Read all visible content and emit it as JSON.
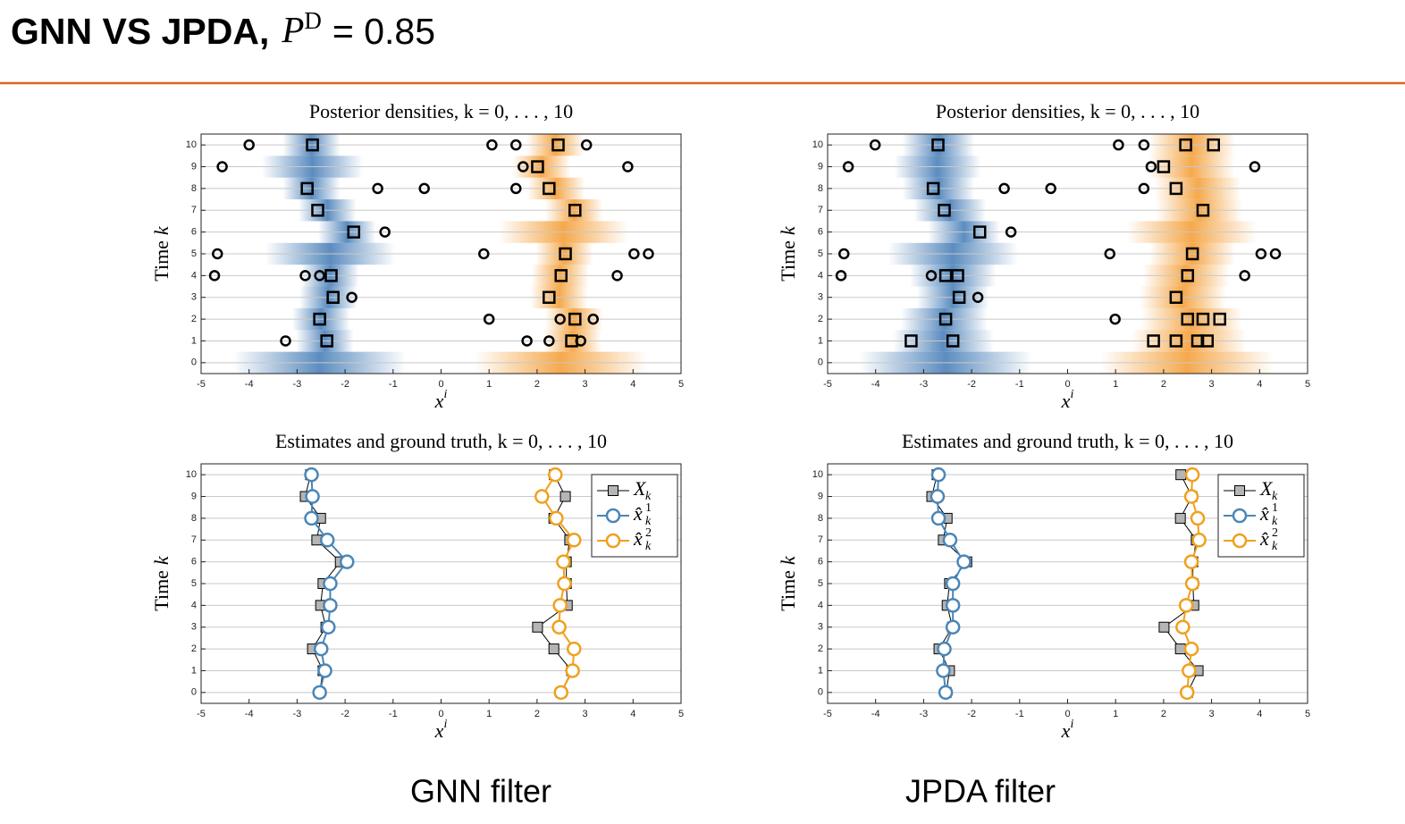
{
  "title": {
    "text": "GNN VS JPDA,",
    "symbol": "P",
    "superscript": "D",
    "equation": "= 0.85"
  },
  "captions": [
    "GNN filter",
    "JPDA filter"
  ],
  "chart_data": [
    {
      "type": "scatter",
      "title": "Posterior densities, k = 0, . . . , 10",
      "xlabel": "x",
      "xlabel_sup": "i",
      "ylabel": "Time",
      "ylabel_var": "k",
      "xlim": [
        -5,
        5
      ],
      "ylim": [
        -0.5,
        10.5
      ],
      "xticks": [
        -5,
        -4,
        -3,
        -2,
        -1,
        0,
        1,
        2,
        3,
        4,
        5
      ],
      "yticks": [
        0,
        1,
        2,
        3,
        4,
        5,
        6,
        7,
        8,
        9,
        10
      ],
      "grid": true,
      "series": [
        {
          "type": "density",
          "color": "#3f78b4",
          "y": [
            0,
            1,
            2,
            3,
            4,
            5,
            6,
            7,
            8,
            9,
            10
          ],
          "x": [
            -2.53,
            -2.42,
            -2.5,
            -2.35,
            -2.31,
            -2.31,
            -1.96,
            -2.37,
            -2.7,
            -2.68,
            -2.7
          ],
          "spread": [
            0.6,
            0.2,
            0.2,
            0.2,
            0.2,
            0.45,
            0.2,
            0.2,
            0.2,
            0.35,
            0.2
          ]
        },
        {
          "type": "density",
          "color": "#f39a2e",
          "y": [
            0,
            1,
            2,
            3,
            4,
            5,
            6,
            7,
            8,
            9,
            10
          ],
          "x": [
            2.5,
            2.74,
            2.77,
            2.46,
            2.48,
            2.57,
            2.55,
            2.77,
            2.4,
            2.1,
            2.38
          ],
          "spread": [
            0.6,
            0.2,
            0.2,
            0.2,
            0.2,
            0.2,
            0.45,
            0.2,
            0.2,
            0.2,
            0.2
          ]
        },
        {
          "type": "points",
          "marker": "circle",
          "color": "#000000",
          "x": [
            -4.0,
            1.06,
            1.56,
            3.03,
            -4.56,
            1.71,
            3.89,
            -1.32,
            -0.35,
            1.56,
            -1.17,
            -4.66,
            0.89,
            4.02,
            4.32,
            -4.72,
            -2.83,
            -2.53,
            3.67,
            -1.86,
            1.0,
            2.48,
            3.17,
            -3.24,
            1.79,
            2.25,
            2.91
          ],
          "y": [
            10,
            10,
            10,
            10,
            9,
            9,
            9,
            8,
            8,
            8,
            6,
            5,
            5,
            5,
            5,
            4,
            4,
            4,
            4,
            3,
            2,
            2,
            2,
            1,
            1,
            1,
            1
          ]
        },
        {
          "type": "points",
          "marker": "square",
          "color": "#000000",
          "x": [
            -2.68,
            2.44,
            2.01,
            -2.79,
            2.25,
            -2.57,
            2.79,
            -1.82,
            2.59,
            -2.29,
            2.5,
            -2.25,
            2.25,
            -2.53,
            2.79,
            -2.38,
            2.72
          ],
          "y": [
            10,
            10,
            9,
            8,
            8,
            7,
            7,
            6,
            5,
            4,
            4,
            3,
            3,
            2,
            2,
            1,
            1
          ]
        }
      ]
    },
    {
      "type": "scatter",
      "title": "Posterior densities, k = 0, . . . , 10",
      "xlabel": "x",
      "xlabel_sup": "i",
      "ylabel": "Time",
      "ylabel_var": "k",
      "xlim": [
        -5,
        5
      ],
      "ylim": [
        -0.5,
        10.5
      ],
      "xticks": [
        -5,
        -4,
        -3,
        -2,
        -1,
        0,
        1,
        2,
        3,
        4,
        5
      ],
      "yticks": [
        0,
        1,
        2,
        3,
        4,
        5,
        6,
        7,
        8,
        9,
        10
      ],
      "grid": true,
      "series": [
        {
          "type": "density",
          "color": "#3f78b4",
          "y": [
            0,
            1,
            2,
            3,
            4,
            5,
            6,
            7,
            8,
            9,
            10
          ],
          "x": [
            -2.54,
            -2.59,
            -2.57,
            -2.39,
            -2.39,
            -2.39,
            -2.16,
            -2.45,
            -2.69,
            -2.71,
            -2.69
          ],
          "spread": [
            0.6,
            0.35,
            0.3,
            0.25,
            0.3,
            0.45,
            0.25,
            0.25,
            0.25,
            0.3,
            0.25
          ]
        },
        {
          "type": "density",
          "color": "#f39a2e",
          "y": [
            0,
            1,
            2,
            3,
            4,
            5,
            6,
            7,
            8,
            9,
            10
          ],
          "x": [
            2.49,
            2.53,
            2.58,
            2.4,
            2.47,
            2.6,
            2.58,
            2.74,
            2.71,
            2.58,
            2.6
          ],
          "spread": [
            0.6,
            0.4,
            0.35,
            0.3,
            0.3,
            0.3,
            0.45,
            0.3,
            0.3,
            0.3,
            0.3
          ]
        },
        {
          "type": "points",
          "marker": "circle",
          "color": "#000000",
          "x": [
            -4.01,
            1.06,
            1.59,
            -4.57,
            1.74,
            3.9,
            -1.32,
            -0.35,
            1.59,
            -1.18,
            -4.66,
            0.88,
            4.03,
            4.33,
            -4.72,
            -2.84,
            3.69,
            -1.87,
            0.99
          ],
          "y": [
            10,
            10,
            10,
            9,
            9,
            9,
            8,
            8,
            8,
            6,
            5,
            5,
            5,
            5,
            4,
            4,
            4,
            3,
            2
          ]
        },
        {
          "type": "points",
          "marker": "square",
          "color": "#000000",
          "x": [
            -2.7,
            2.46,
            3.04,
            2.0,
            -2.8,
            2.26,
            -2.57,
            2.82,
            -1.83,
            2.6,
            -2.54,
            -2.29,
            2.5,
            -2.26,
            2.26,
            -2.54,
            2.5,
            2.82,
            3.17,
            -3.26,
            -2.39,
            1.79,
            2.26,
            2.71,
            2.91
          ],
          "y": [
            10,
            10,
            10,
            9,
            8,
            8,
            7,
            7,
            6,
            5,
            4,
            4,
            4,
            3,
            3,
            2,
            2,
            2,
            2,
            1,
            1,
            1,
            1,
            1,
            1
          ]
        }
      ]
    },
    {
      "type": "line",
      "title": "Estimates and ground truth, k = 0, . . . , 10",
      "xlabel": "x",
      "xlabel_sup": "i",
      "ylabel": "Time",
      "ylabel_var": "k",
      "xlim": [
        -5,
        5
      ],
      "ylim": [
        -0.5,
        10.5
      ],
      "xticks": [
        -5,
        -4,
        -3,
        -2,
        -1,
        0,
        1,
        2,
        3,
        4,
        5
      ],
      "yticks": [
        0,
        1,
        2,
        3,
        4,
        5,
        6,
        7,
        8,
        9,
        10
      ],
      "grid": true,
      "legend": "upper-right",
      "series": [
        {
          "name": "X",
          "subscript": "k",
          "marker": "square",
          "color": "#000000",
          "marker_fill": "#b5b5b5",
          "y": [
            0,
            1,
            2,
            3,
            4,
            5,
            6,
            7,
            8,
            9,
            10
          ],
          "x": [
            -2.53,
            -2.46,
            -2.68,
            -2.4,
            -2.51,
            -2.46,
            -2.1,
            -2.59,
            -2.51,
            -2.83,
            -2.72
          ]
        },
        {
          "marker": "square",
          "color": "#000000",
          "marker_fill": "#b5b5b5",
          "y": [
            0,
            1,
            2,
            3,
            4,
            5,
            6,
            7,
            8,
            9,
            10
          ],
          "x": [
            2.5,
            2.72,
            2.35,
            2.01,
            2.63,
            2.61,
            2.61,
            2.68,
            2.35,
            2.59,
            2.36
          ]
        },
        {
          "name": "x̂",
          "subscript": "k",
          "superscript": "1",
          "marker": "circle",
          "color": "#4a86b8",
          "y": [
            0,
            1,
            2,
            3,
            4,
            5,
            6,
            7,
            8,
            9,
            10
          ],
          "x": [
            -2.53,
            -2.42,
            -2.5,
            -2.35,
            -2.31,
            -2.31,
            -1.96,
            -2.37,
            -2.7,
            -2.68,
            -2.7
          ]
        },
        {
          "name": "x̂",
          "subscript": "k",
          "superscript": "2",
          "marker": "circle",
          "color": "#f0a01e",
          "y": [
            0,
            1,
            2,
            3,
            4,
            5,
            6,
            7,
            8,
            9,
            10
          ],
          "x": [
            2.5,
            2.74,
            2.77,
            2.46,
            2.48,
            2.57,
            2.55,
            2.77,
            2.4,
            2.1,
            2.38
          ]
        }
      ]
    },
    {
      "type": "line",
      "title": "Estimates and ground truth, k = 0, . . . , 10",
      "xlabel": "x",
      "xlabel_sup": "i",
      "ylabel": "Time",
      "ylabel_var": "k",
      "xlim": [
        -5,
        5
      ],
      "ylim": [
        -0.5,
        10.5
      ],
      "xticks": [
        -5,
        -4,
        -3,
        -2,
        -1,
        0,
        1,
        2,
        3,
        4,
        5
      ],
      "yticks": [
        0,
        1,
        2,
        3,
        4,
        5,
        6,
        7,
        8,
        9,
        10
      ],
      "grid": true,
      "legend": "upper-right",
      "series": [
        {
          "name": "X",
          "subscript": "k",
          "marker": "square",
          "color": "#000000",
          "marker_fill": "#b5b5b5",
          "y": [
            0,
            1,
            2,
            3,
            4,
            5,
            6,
            7,
            8,
            9,
            10
          ],
          "x": [
            -2.53,
            -2.46,
            -2.68,
            -2.4,
            -2.51,
            -2.46,
            -2.1,
            -2.59,
            -2.51,
            -2.83,
            -2.72
          ]
        },
        {
          "marker": "square",
          "color": "#000000",
          "marker_fill": "#b5b5b5",
          "y": [
            0,
            1,
            2,
            3,
            4,
            5,
            6,
            7,
            8,
            9,
            10
          ],
          "x": [
            2.5,
            2.72,
            2.35,
            2.01,
            2.63,
            2.61,
            2.61,
            2.68,
            2.35,
            2.59,
            2.36
          ]
        },
        {
          "name": "x̂",
          "subscript": "k",
          "superscript": "1",
          "marker": "circle",
          "color": "#4a86b8",
          "y": [
            0,
            1,
            2,
            3,
            4,
            5,
            6,
            7,
            8,
            9,
            10
          ],
          "x": [
            -2.54,
            -2.59,
            -2.57,
            -2.39,
            -2.39,
            -2.39,
            -2.16,
            -2.45,
            -2.69,
            -2.71,
            -2.69
          ]
        },
        {
          "name": "x̂",
          "subscript": "k",
          "superscript": "2",
          "marker": "circle",
          "color": "#f0a01e",
          "y": [
            0,
            1,
            2,
            3,
            4,
            5,
            6,
            7,
            8,
            9,
            10
          ],
          "x": [
            2.49,
            2.53,
            2.58,
            2.4,
            2.47,
            2.6,
            2.58,
            2.74,
            2.71,
            2.58,
            2.6
          ]
        }
      ]
    }
  ]
}
